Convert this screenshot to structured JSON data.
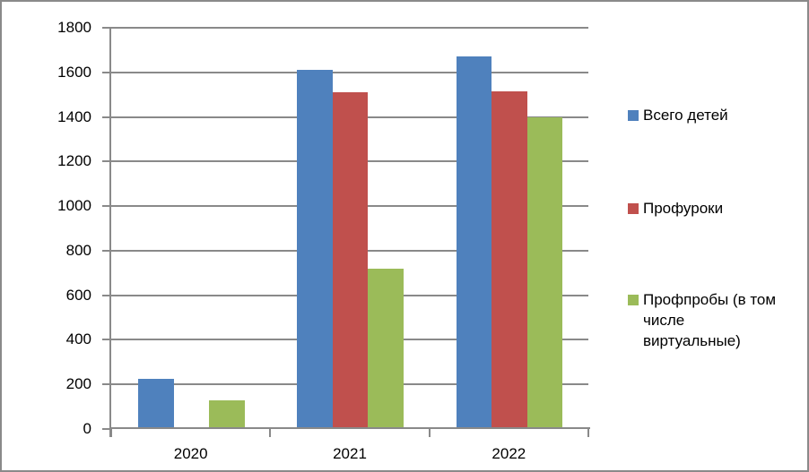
{
  "chart_data": {
    "type": "bar",
    "title": "",
    "xlabel": "",
    "ylabel": "",
    "categories": [
      "2020",
      "2021",
      "2022"
    ],
    "series": [
      {
        "name": "Всего детей",
        "color": "#4F81BD",
        "values": [
          225,
          1610,
          1670
        ]
      },
      {
        "name": "Профуроки",
        "color": "#C0504D",
        "values": [
          0,
          1510,
          1515
        ]
      },
      {
        "name": "Профпробы (в том числе виртуальные)",
        "color": "#9BBB59",
        "values": [
          130,
          720,
          1400
        ]
      }
    ],
    "ylim": [
      0,
      1800
    ],
    "y_ticks": [
      0,
      200,
      400,
      600,
      800,
      1000,
      1200,
      1400,
      1600,
      1800
    ],
    "grid": true,
    "legend_position": "right"
  },
  "colors": {
    "gridline": "#898989",
    "axis": "#898989",
    "border": "#8A8A8A",
    "background": "#FFFFFF",
    "text": "#000000"
  }
}
